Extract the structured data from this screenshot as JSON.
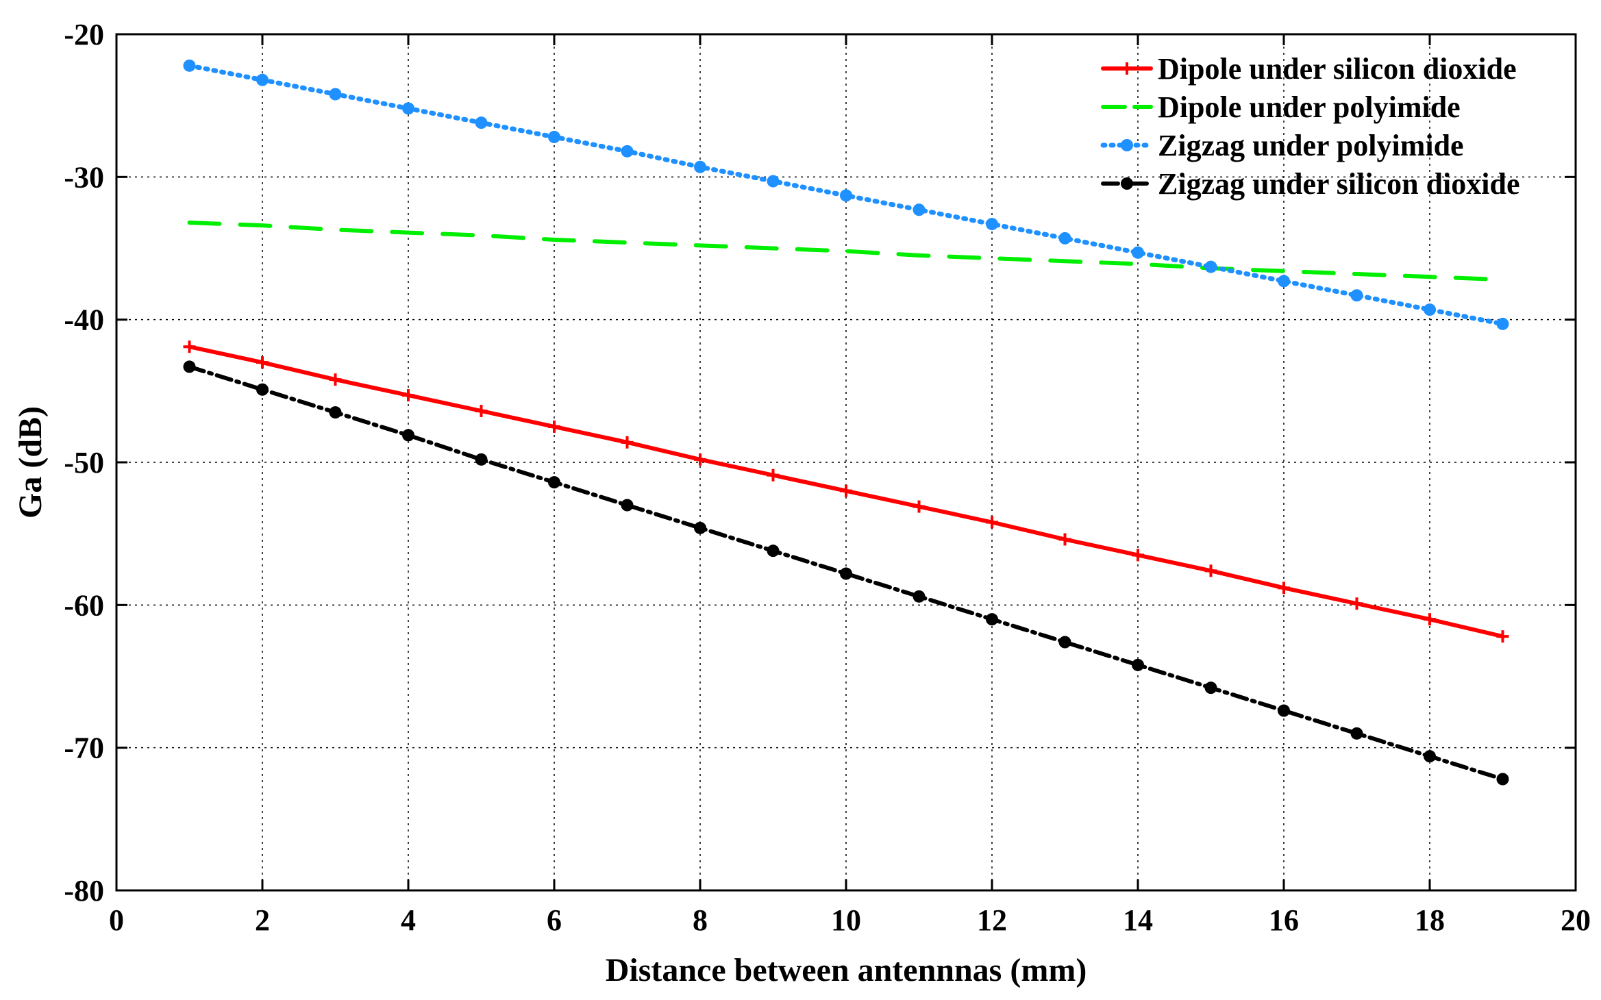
{
  "chart_data": {
    "type": "line",
    "title": "",
    "xlabel": "Distance between antennnas (mm)",
    "ylabel": "Ga (dB)",
    "xlim": [
      0,
      20
    ],
    "ylim": [
      -80,
      -20
    ],
    "xticks": [
      0,
      2,
      4,
      6,
      8,
      10,
      12,
      14,
      16,
      18,
      20
    ],
    "yticks": [
      -20,
      -30,
      -40,
      -50,
      -60,
      -70,
      -80
    ],
    "x_tick_labels": [
      "0",
      "2",
      "4",
      "6",
      "8",
      "10",
      "12",
      "14",
      "16",
      "18",
      "20"
    ],
    "y_tick_labels": [
      "-20",
      "-30",
      "-40",
      "-50",
      "-60",
      "-70",
      "-80"
    ],
    "grid": true,
    "legend_position": "top-right",
    "x": [
      1,
      2,
      3,
      4,
      5,
      6,
      7,
      8,
      9,
      10,
      11,
      12,
      13,
      14,
      15,
      16,
      17,
      18,
      19
    ],
    "series": [
      {
        "name": "Dipole under silicon dioxide",
        "color": "#ff0000",
        "style": "solid",
        "marker": "plus",
        "values": [
          -41.9,
          -43.0,
          -44.2,
          -45.3,
          -46.4,
          -47.5,
          -48.6,
          -49.8,
          -50.9,
          -52.0,
          -53.1,
          -54.2,
          -55.4,
          -56.5,
          -57.6,
          -58.8,
          -59.9,
          -61.0,
          -62.2
        ]
      },
      {
        "name": "Dipole under polyimide",
        "color": "#00ee00",
        "style": "dashed",
        "marker": "none",
        "values": [
          -33.2,
          -33.4,
          -33.7,
          -33.9,
          -34.1,
          -34.4,
          -34.6,
          -34.8,
          -35.0,
          -35.2,
          -35.5,
          -35.7,
          -35.9,
          -36.1,
          -36.4,
          -36.6,
          -36.8,
          -37.0,
          -37.2
        ]
      },
      {
        "name": "Zigzag under polyimide",
        "color": "#1e90ff",
        "style": "dotted",
        "marker": "dot",
        "values": [
          -22.2,
          -23.2,
          -24.2,
          -25.2,
          -26.2,
          -27.2,
          -28.2,
          -29.3,
          -30.3,
          -31.3,
          -32.3,
          -33.3,
          -34.3,
          -35.3,
          -36.3,
          -37.3,
          -38.3,
          -39.3,
          -40.3
        ]
      },
      {
        "name": "Zigzag under silicon dioxide",
        "color": "#000000",
        "style": "dashdot",
        "marker": "dot",
        "values": [
          -43.3,
          -44.9,
          -46.5,
          -48.1,
          -49.8,
          -51.4,
          -53.0,
          -54.6,
          -56.2,
          -57.8,
          -59.4,
          -61.0,
          -62.6,
          -64.2,
          -65.8,
          -67.4,
          -69.0,
          -70.6,
          -72.2
        ]
      }
    ]
  }
}
